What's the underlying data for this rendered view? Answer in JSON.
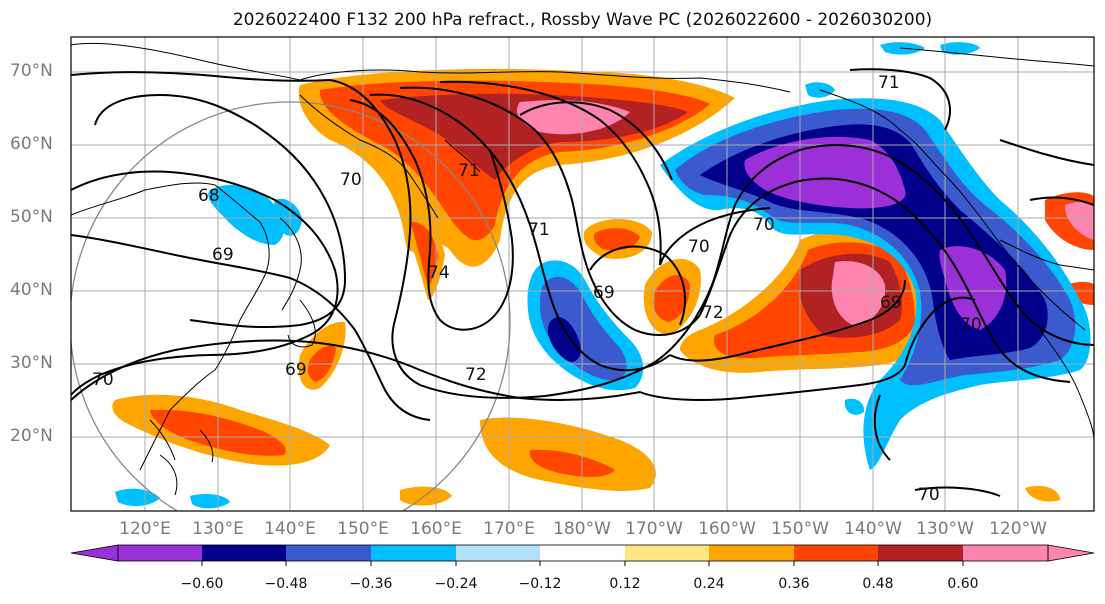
{
  "title": "2026022400 F132 200 hPa refract., Rossby Wave PC (2026022600 - 2026030200)",
  "lat_labels": [
    "70°N",
    "60°N",
    "50°N",
    "40°N",
    "30°N",
    "20°N"
  ],
  "lon_labels": [
    "120°E",
    "130°E",
    "140°E",
    "150°E",
    "160°E",
    "170°E",
    "180°W",
    "170°W",
    "160°W",
    "150°W",
    "140°W",
    "130°W",
    "120°W"
  ],
  "colorbar": {
    "ticks": [
      "−0.60",
      "−0.48",
      "−0.36",
      "−0.24",
      "−0.12",
      "0.12",
      "0.24",
      "0.36",
      "0.48",
      "0.60"
    ],
    "colors": [
      "#9b30d9",
      "#00008b",
      "#3a5acd",
      "#00bfff",
      "#b0e0fa",
      "#ffffff",
      "#ffe680",
      "#ffa500",
      "#ff4500",
      "#b22222",
      "#ff85b0"
    ]
  },
  "contour_labels": [
    "68",
    "69",
    "70",
    "71",
    "72",
    "69",
    "70",
    "71",
    "70",
    "69",
    "72",
    "69",
    "70",
    "71",
    "70",
    "70",
    "74"
  ]
}
